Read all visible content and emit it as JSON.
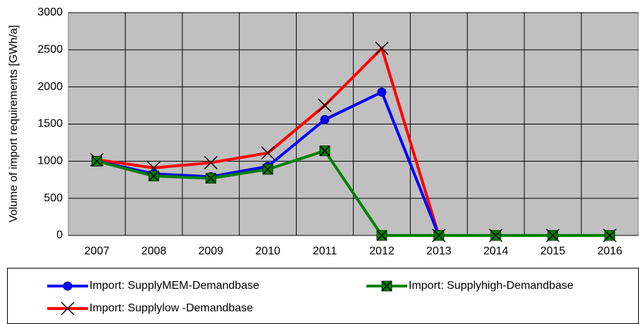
{
  "chart_data": {
    "type": "line",
    "y_label": "Volume of import requirements [GWh/a]",
    "categories": [
      "2007",
      "2008",
      "2009",
      "2010",
      "2011",
      "2012",
      "2013",
      "2014",
      "2015",
      "2016"
    ],
    "series": [
      {
        "name": "Import: SupplyMEM-Demandbase",
        "color": "#0000ff",
        "marker": "circle",
        "values": [
          1000,
          830,
          790,
          930,
          1560,
          1930,
          0,
          0,
          0,
          0
        ]
      },
      {
        "name": "Import: Supplyhigh-Demandbase",
        "color": "#008000",
        "marker": "square-x",
        "values": [
          1000,
          800,
          770,
          890,
          1140,
          0,
          0,
          0,
          0,
          0
        ]
      },
      {
        "name": "Import: Supplylow -Demandbase",
        "color": "#ff0000",
        "marker": "x",
        "values": [
          1020,
          910,
          980,
          1110,
          1750,
          2520,
          0,
          0,
          0,
          0
        ]
      }
    ],
    "ylim": [
      0,
      3000
    ],
    "yticks": [
      0,
      500,
      1000,
      1500,
      2000,
      2500,
      3000
    ],
    "grid": true
  }
}
